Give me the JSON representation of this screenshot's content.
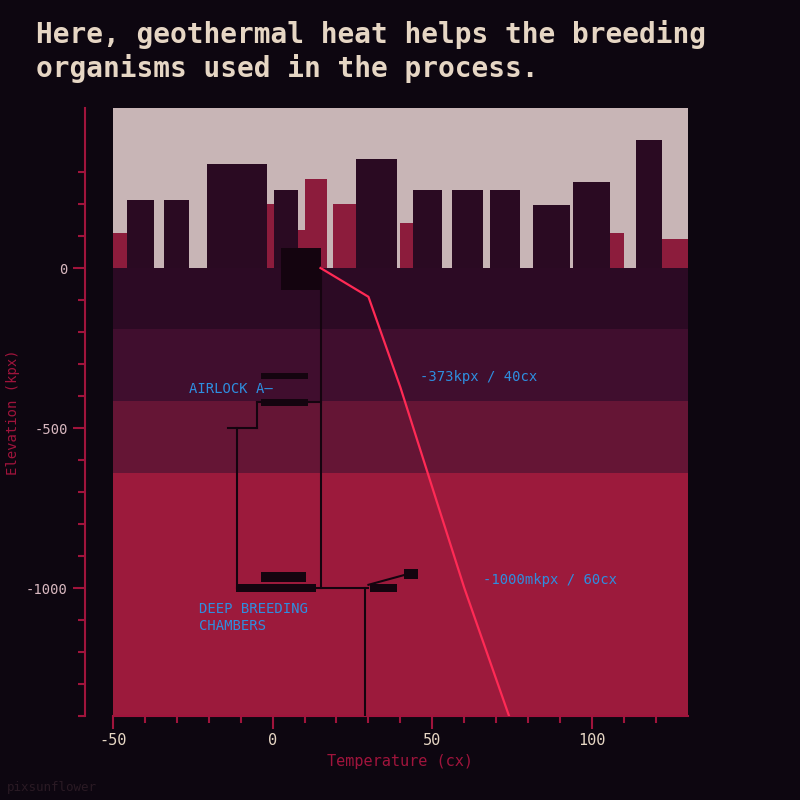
{
  "chart_data": {
    "type": "line",
    "title": "Here, geothermal heat helps the breeding organisms used in the process.",
    "x_label": "Temperature (cx)",
    "y_label": "Elevation (kpx)",
    "x": [
      15,
      30,
      40,
      60,
      74
    ],
    "values": [
      0,
      -90,
      -373,
      -1000,
      -1400
    ],
    "color": "#ff2a55",
    "xlim": [
      -50,
      130
    ],
    "ylim": [
      -1400,
      500
    ],
    "xticks": [
      -50,
      0,
      50,
      100
    ],
    "yticks": [
      -1000,
      -500,
      0
    ],
    "x_minor_ticks": [
      -40,
      -30,
      -20,
      -10,
      10,
      20,
      30,
      40,
      60,
      70,
      80,
      90,
      110,
      120
    ],
    "y_minor_ticks": [
      -1400,
      -1300,
      -1200,
      -1100,
      -900,
      -800,
      -700,
      -600,
      -400,
      -300,
      -200,
      -100,
      100,
      200,
      300
    ],
    "grid": false,
    "layers": [
      {
        "top": 500,
        "bottom": 0,
        "color": "#c8b5b6"
      },
      {
        "top": 0,
        "bottom": -190,
        "color": "#2c0a24"
      },
      {
        "top": -190,
        "bottom": -415,
        "color": "#400e2e"
      },
      {
        "top": -415,
        "bottom": -640,
        "color": "#651535"
      },
      {
        "top": -640,
        "bottom": -1400,
        "color": "#9c1a3c"
      }
    ],
    "skyline": {
      "back_color": "#8c1c3c",
      "front_color": "#2a0a22",
      "back": [
        [
          -50,
          -42,
          110
        ],
        [
          -20,
          2,
          200
        ],
        [
          3,
          10,
          120
        ],
        [
          10,
          17,
          277
        ],
        [
          19,
          27,
          200
        ],
        [
          40,
          46,
          140
        ],
        [
          98,
          110,
          110
        ],
        [
          120,
          130,
          90
        ]
      ],
      "front": [
        [
          -45.6,
          -37.2,
          214
        ],
        [
          -34,
          -26,
          214
        ],
        [
          -20.6,
          -1.9,
          324
        ],
        [
          0.3,
          8,
          245
        ],
        [
          26,
          39,
          340
        ],
        [
          44,
          53,
          245
        ],
        [
          56,
          66,
          245
        ],
        [
          68,
          77.5,
          245
        ],
        [
          81.5,
          93,
          198
        ],
        [
          94,
          105.6,
          270
        ],
        [
          113.7,
          122,
          400
        ]
      ]
    },
    "structures": {
      "color": "#14040f",
      "lines": [
        [
          [
            15,
            15
          ],
          [
            0,
            -1000
          ]
        ],
        [
          [
            -11,
            -11
          ],
          [
            -500,
            -1000
          ]
        ],
        [
          [
            -11,
            30
          ],
          [
            -1000,
            -1000
          ]
        ],
        [
          [
            29,
            29
          ],
          [
            -1000,
            -1400
          ]
        ],
        [
          [
            -14,
            -5
          ],
          [
            -500,
            -500
          ]
        ],
        [
          [
            -5,
            -5
          ],
          [
            -500,
            -420
          ]
        ],
        [
          [
            -5,
            15
          ],
          [
            -420,
            -420
          ]
        ],
        [
          [
            30,
            41
          ],
          [
            -990,
            -960
          ]
        ]
      ],
      "boxes": [
        [
          2.5,
          -69,
          15,
          63
        ],
        [
          -3.7,
          -346,
          11.2,
          -327
        ],
        [
          -3.7,
          -431,
          11.2,
          -409
        ],
        [
          -11.5,
          -1013,
          13.7,
          -988
        ],
        [
          -3.7,
          -981,
          10.6,
          -950
        ],
        [
          30.6,
          -1013,
          38.8,
          -988
        ],
        [
          41,
          -972,
          45.6,
          -940
        ]
      ]
    },
    "annotations": [
      {
        "text": "AIRLOCK A—",
        "x": -26,
        "y": -377,
        "color": "#2e8ee0"
      },
      {
        "text": "-373kpx / 40cx",
        "x": 46,
        "y": -340,
        "color": "#2e8ee0"
      },
      {
        "text": "-1000mkpx / 60cx",
        "x": 66,
        "y": -975,
        "color": "#2e8ee0"
      },
      {
        "text": "DEEP BREEDING\nCHAMBERS",
        "x": -23,
        "y": -1045,
        "color": "#2e8ee0"
      }
    ],
    "credit": "pixsunflower"
  }
}
